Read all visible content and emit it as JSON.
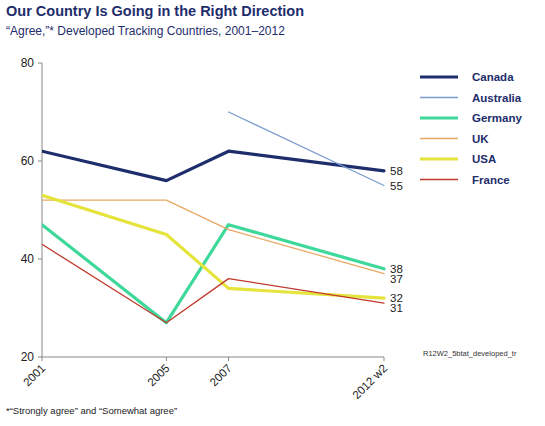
{
  "chart_data": {
    "type": "line",
    "title": "Our Country Is Going in the Right Direction",
    "subtitle": "“Agree,”* Developed Tracking Countries, 2001–2012",
    "footnote": "*“Strongly agree” and “Somewhat agree”",
    "annotation": "R12W2_5btat_developed_tr",
    "x": [
      2001,
      2005,
      2007,
      2012
    ],
    "xlim": [
      2001,
      2012
    ],
    "xticks": [
      2001,
      2005,
      2007,
      {
        "value": 2012,
        "label": "2012 w2"
      }
    ],
    "ylim": [
      20,
      80
    ],
    "yticks": [
      20,
      40,
      60,
      80
    ],
    "grid": false,
    "legend": "right",
    "data_labels": true,
    "series": [
      {
        "name": "Canada",
        "color": "#1e2d6b",
        "values": [
          62,
          56,
          62,
          58
        ]
      },
      {
        "name": "Australia",
        "color": "#7b9dd0",
        "values": [
          null,
          null,
          70,
          55
        ]
      },
      {
        "name": "Germany",
        "color": "#3ed89a",
        "values": [
          47,
          27,
          47,
          38
        ]
      },
      {
        "name": "UK",
        "color": "#e8a865",
        "values": [
          52,
          52,
          46,
          37
        ]
      },
      {
        "name": "USA",
        "color": "#e4e43c",
        "values": [
          53,
          45,
          34,
          32
        ]
      },
      {
        "name": "France",
        "color": "#c0392b",
        "values": [
          43,
          27,
          36,
          31
        ]
      }
    ]
  }
}
